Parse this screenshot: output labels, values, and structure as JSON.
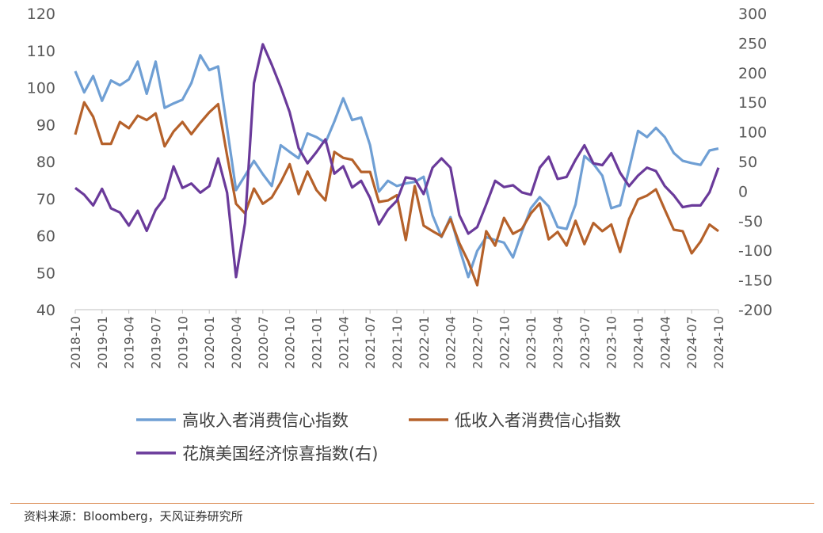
{
  "chart_data": {
    "type": "line",
    "title": "",
    "x": [
      "2018-10",
      "2018-11",
      "2018-12",
      "2019-01",
      "2019-02",
      "2019-03",
      "2019-04",
      "2019-05",
      "2019-06",
      "2019-07",
      "2019-08",
      "2019-09",
      "2019-10",
      "2019-11",
      "2019-12",
      "2020-01",
      "2020-02",
      "2020-03",
      "2020-04",
      "2020-05",
      "2020-06",
      "2020-07",
      "2020-08",
      "2020-09",
      "2020-10",
      "2020-11",
      "2020-12",
      "2021-01",
      "2021-02",
      "2021-03",
      "2021-04",
      "2021-05",
      "2021-06",
      "2021-07",
      "2021-08",
      "2021-09",
      "2021-10",
      "2021-11",
      "2021-12",
      "2022-01",
      "2022-02",
      "2022-03",
      "2022-04",
      "2022-05",
      "2022-06",
      "2022-07",
      "2022-08",
      "2022-09",
      "2022-10",
      "2022-11",
      "2022-12",
      "2023-01",
      "2023-02",
      "2023-03",
      "2023-04",
      "2023-05",
      "2023-06",
      "2023-07",
      "2023-08",
      "2023-09",
      "2023-10",
      "2023-11",
      "2023-12",
      "2024-01",
      "2024-02",
      "2024-03",
      "2024-04",
      "2024-05",
      "2024-06",
      "2024-07",
      "2024-08",
      "2024-09",
      "2024-10"
    ],
    "x_tick_labels": [
      "2018-10",
      "2019-01",
      "2019-04",
      "2019-07",
      "2019-10",
      "2020-01",
      "2020-04",
      "2020-07",
      "2020-10",
      "2021-01",
      "2021-04",
      "2021-07",
      "2021-10",
      "2022-01",
      "2022-04",
      "2022-07",
      "2022-10",
      "2023-01",
      "2023-04",
      "2023-07",
      "2023-10",
      "2024-01",
      "2024-04",
      "2024-07",
      "2024-10"
    ],
    "y_left": {
      "range": [
        40,
        120
      ],
      "ticks": [
        "40",
        "50",
        "60",
        "70",
        "80",
        "90",
        "100",
        "110",
        "120"
      ]
    },
    "y_right": {
      "range": [
        -200,
        300
      ],
      "ticks": [
        "-200",
        "-150",
        "-100",
        "-50",
        "0",
        "50",
        "100",
        "150",
        "200",
        "250",
        "300"
      ]
    },
    "grid": false,
    "legend_position": "bottom",
    "series": [
      {
        "name": "高收入者消费信心指数",
        "axis": "left",
        "color": "#6f9fd4",
        "values": [
          104.4,
          98.7,
          103.1,
          96.4,
          101.9,
          100.6,
          102.2,
          107,
          98.3,
          107,
          94.5,
          95.7,
          96.7,
          101.2,
          108.7,
          104.7,
          105.7,
          89,
          72.3,
          76.2,
          80.2,
          76.6,
          73.4,
          84.4,
          82.6,
          80.9,
          87.6,
          86.6,
          85.1,
          90.8,
          97.1,
          91.2,
          91.9,
          84.4,
          71.9,
          74.8,
          73.4,
          74.1,
          74.5,
          75.9,
          65.5,
          59.6,
          65,
          56.6,
          48.8,
          55.9,
          59.6,
          58.8,
          58.1,
          54.1,
          61,
          67.4,
          70.4,
          67.9,
          62.3,
          61.8,
          68.4,
          81.5,
          79.4,
          76.2,
          67.4,
          68.2,
          78,
          88.3,
          86.6,
          89.1,
          86.6,
          82.3,
          80.2,
          79.6,
          79.1,
          83,
          83.5
        ]
      },
      {
        "name": "低收入者消费信心指数",
        "axis": "left",
        "color": "#b5612a",
        "values": [
          87.3,
          96,
          92.1,
          84.8,
          84.8,
          90.7,
          89,
          92.4,
          91.2,
          93,
          84.1,
          88.1,
          90.7,
          87.4,
          90.5,
          93.3,
          95.5,
          81.6,
          68.6,
          66,
          72.7,
          68.6,
          70.3,
          74.4,
          79.3,
          71.2,
          77.3,
          72.3,
          69.5,
          82.6,
          81,
          80.5,
          77.2,
          77.2,
          69.1,
          69.5,
          70.9,
          58.8,
          73.4,
          62.7,
          61.2,
          59.8,
          64.5,
          58,
          53,
          46.6,
          61.2,
          57.3,
          64.8,
          60.5,
          61.8,
          66,
          68.7,
          59,
          61,
          57.3,
          64,
          57.7,
          63.4,
          61.2,
          63,
          55.6,
          64.5,
          69.8,
          70.8,
          72.5,
          67,
          61.6,
          61.2,
          55.2,
          58.4,
          63,
          61.2
        ]
      },
      {
        "name": "花旗美国经济惊喜指数(右)",
        "axis": "right",
        "color": "#6a3a9a",
        "values": [
          5.5,
          -6,
          -24,
          4,
          -29,
          -36,
          -58,
          -33,
          -67,
          -31.6,
          -11.5,
          42,
          5.5,
          13,
          -2.5,
          8.5,
          55.3,
          -2.5,
          -145,
          -54,
          182.4,
          248,
          213.5,
          175.7,
          133.3,
          73,
          47,
          66,
          87.4,
          29.5,
          42,
          6.3,
          17.5,
          -11.5,
          -56,
          -31.6,
          -16,
          23.3,
          20.6,
          -4.8,
          39.7,
          55.3,
          39.7,
          -40.5,
          -71.7,
          -60.5,
          -22.6,
          17.5,
          7,
          10,
          -2,
          -6,
          39.7,
          58,
          20.6,
          24,
          53,
          77.6,
          47,
          44,
          64,
          31,
          8.5,
          26.3,
          39.7,
          34,
          8.5,
          -7,
          -27,
          -24,
          -24,
          -2,
          39.7
        ]
      }
    ]
  },
  "source": "资料来源：Bloomberg，天风证券研究所"
}
